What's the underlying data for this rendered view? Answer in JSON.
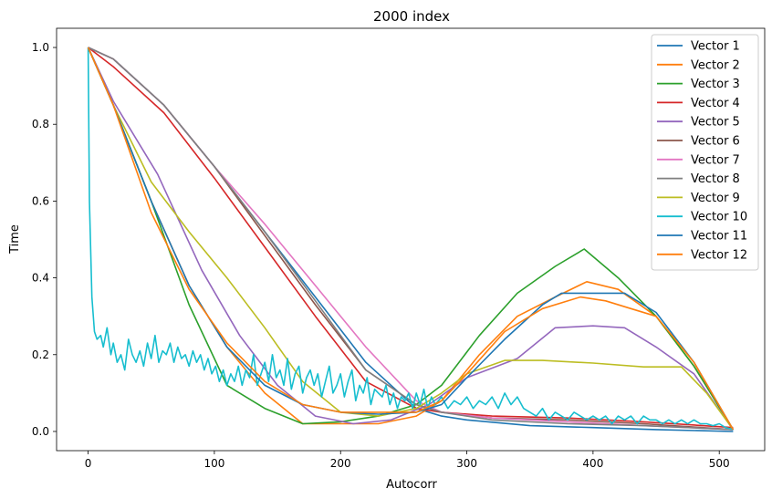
{
  "chart_data": {
    "type": "line",
    "title": "2000 index",
    "xlabel": "Autocorr",
    "ylabel": "Time",
    "xlim": [
      -25,
      536
    ],
    "ylim": [
      -0.05,
      1.05
    ],
    "xticks": [
      0,
      100,
      200,
      300,
      400,
      500
    ],
    "yticks": [
      0.0,
      0.2,
      0.4,
      0.6,
      0.8,
      1.0
    ],
    "xtick_labels": [
      "0",
      "100",
      "200",
      "300",
      "400",
      "500"
    ],
    "ytick_labels": [
      "0.0",
      "0.2",
      "0.4",
      "0.6",
      "0.8",
      "1.0"
    ],
    "grid": false,
    "legend_position": "top-right",
    "series": [
      {
        "name": "Vector 1",
        "color": "#1f77b4",
        "x": [
          0,
          20,
          60,
          100,
          140,
          180,
          220,
          260,
          280,
          300,
          350,
          400,
          450,
          511
        ],
        "y": [
          1.0,
          0.97,
          0.85,
          0.69,
          0.52,
          0.35,
          0.18,
          0.06,
          0.04,
          0.03,
          0.015,
          0.01,
          0.005,
          0.0
        ]
      },
      {
        "name": "Vector 2",
        "color": "#ff7f0e",
        "x": [
          0,
          20,
          50,
          80,
          110,
          140,
          170,
          200,
          230,
          260,
          280,
          310,
          340,
          370,
          395,
          420,
          450,
          480,
          511
        ],
        "y": [
          1.0,
          0.85,
          0.6,
          0.38,
          0.22,
          0.1,
          0.02,
          0.02,
          0.02,
          0.04,
          0.08,
          0.2,
          0.3,
          0.35,
          0.39,
          0.37,
          0.3,
          0.17,
          0.005
        ]
      },
      {
        "name": "Vector 3",
        "color": "#2ca02c",
        "x": [
          0,
          20,
          50,
          80,
          110,
          140,
          170,
          200,
          230,
          260,
          280,
          310,
          340,
          370,
          393,
          420,
          450,
          480,
          511
        ],
        "y": [
          1.0,
          0.85,
          0.6,
          0.33,
          0.12,
          0.06,
          0.02,
          0.025,
          0.04,
          0.07,
          0.12,
          0.25,
          0.36,
          0.43,
          0.475,
          0.4,
          0.3,
          0.17,
          0.005
        ]
      },
      {
        "name": "Vector 4",
        "color": "#d62728",
        "x": [
          0,
          20,
          60,
          100,
          140,
          180,
          220,
          260,
          280,
          320,
          380,
          440,
          511
        ],
        "y": [
          1.0,
          0.95,
          0.83,
          0.66,
          0.48,
          0.3,
          0.13,
          0.06,
          0.05,
          0.04,
          0.035,
          0.025,
          0.01
        ]
      },
      {
        "name": "Vector 5",
        "color": "#9467bd",
        "x": [
          0,
          20,
          55,
          90,
          120,
          150,
          180,
          210,
          240,
          270,
          300,
          340,
          370,
          400,
          425,
          450,
          480,
          511
        ],
        "y": [
          1.0,
          0.86,
          0.67,
          0.42,
          0.25,
          0.12,
          0.04,
          0.02,
          0.03,
          0.07,
          0.14,
          0.19,
          0.27,
          0.275,
          0.27,
          0.22,
          0.15,
          0.005
        ]
      },
      {
        "name": "Vector 6",
        "color": "#8c564b",
        "x": [
          0,
          20,
          60,
          100,
          140,
          180,
          220,
          260,
          280,
          320,
          380,
          440,
          511
        ],
        "y": [
          1.0,
          0.97,
          0.85,
          0.69,
          0.51,
          0.33,
          0.16,
          0.07,
          0.05,
          0.035,
          0.03,
          0.02,
          0.005
        ]
      },
      {
        "name": "Vector 7",
        "color": "#e377c2",
        "x": [
          0,
          20,
          60,
          100,
          140,
          180,
          220,
          260,
          280,
          320,
          380,
          440,
          511
        ],
        "y": [
          1.0,
          0.97,
          0.85,
          0.69,
          0.54,
          0.38,
          0.22,
          0.08,
          0.05,
          0.035,
          0.025,
          0.015,
          0.005
        ]
      },
      {
        "name": "Vector 8",
        "color": "#7f7f7f",
        "x": [
          0,
          20,
          60,
          100,
          140,
          180,
          220,
          260,
          280,
          320,
          380,
          440,
          511
        ],
        "y": [
          1.0,
          0.97,
          0.85,
          0.69,
          0.52,
          0.34,
          0.16,
          0.07,
          0.05,
          0.03,
          0.02,
          0.015,
          0.005
        ]
      },
      {
        "name": "Vector 9",
        "color": "#bcbd22",
        "x": [
          0,
          20,
          50,
          80,
          110,
          140,
          170,
          200,
          230,
          260,
          280,
          300,
          330,
          360,
          400,
          440,
          470,
          490,
          511
        ],
        "y": [
          1.0,
          0.85,
          0.65,
          0.52,
          0.4,
          0.27,
          0.13,
          0.05,
          0.04,
          0.06,
          0.1,
          0.15,
          0.185,
          0.185,
          0.178,
          0.168,
          0.168,
          0.1,
          0.005
        ]
      },
      {
        "name": "Vector 10",
        "color": "#17becf",
        "x": [
          0,
          1,
          3,
          5,
          7,
          10,
          12,
          15,
          18,
          20,
          23,
          26,
          29,
          32,
          35,
          38,
          41,
          44,
          47,
          50,
          53,
          56,
          59,
          62,
          65,
          68,
          71,
          74,
          77,
          80,
          83,
          86,
          89,
          92,
          95,
          98,
          101,
          104,
          107,
          110,
          113,
          116,
          119,
          122,
          125,
          128,
          131,
          134,
          137,
          140,
          143,
          146,
          149,
          152,
          155,
          158,
          161,
          164,
          167,
          170,
          173,
          176,
          179,
          182,
          185,
          188,
          191,
          194,
          197,
          200,
          203,
          206,
          209,
          212,
          215,
          218,
          221,
          224,
          227,
          230,
          233,
          236,
          239,
          242,
          245,
          248,
          251,
          254,
          257,
          260,
          263,
          266,
          269,
          272,
          275,
          280,
          285,
          290,
          295,
          300,
          305,
          310,
          315,
          320,
          325,
          330,
          335,
          340,
          345,
          350,
          355,
          360,
          365,
          370,
          375,
          380,
          385,
          390,
          395,
          400,
          405,
          410,
          415,
          420,
          425,
          430,
          435,
          440,
          445,
          450,
          455,
          460,
          465,
          470,
          475,
          480,
          485,
          490,
          495,
          500,
          505,
          511
        ],
        "y": [
          1.0,
          0.6,
          0.35,
          0.26,
          0.24,
          0.25,
          0.22,
          0.27,
          0.2,
          0.23,
          0.18,
          0.2,
          0.16,
          0.24,
          0.2,
          0.18,
          0.21,
          0.17,
          0.23,
          0.19,
          0.25,
          0.18,
          0.21,
          0.2,
          0.23,
          0.18,
          0.22,
          0.19,
          0.2,
          0.17,
          0.21,
          0.18,
          0.2,
          0.16,
          0.19,
          0.15,
          0.17,
          0.13,
          0.16,
          0.12,
          0.15,
          0.13,
          0.17,
          0.12,
          0.16,
          0.14,
          0.2,
          0.12,
          0.15,
          0.18,
          0.13,
          0.2,
          0.14,
          0.16,
          0.12,
          0.19,
          0.11,
          0.15,
          0.17,
          0.1,
          0.14,
          0.16,
          0.12,
          0.15,
          0.09,
          0.13,
          0.17,
          0.1,
          0.12,
          0.15,
          0.09,
          0.13,
          0.16,
          0.08,
          0.12,
          0.1,
          0.14,
          0.07,
          0.11,
          0.1,
          0.09,
          0.12,
          0.07,
          0.1,
          0.06,
          0.09,
          0.08,
          0.1,
          0.06,
          0.1,
          0.07,
          0.11,
          0.06,
          0.09,
          0.07,
          0.09,
          0.06,
          0.08,
          0.07,
          0.09,
          0.06,
          0.08,
          0.07,
          0.09,
          0.06,
          0.1,
          0.07,
          0.09,
          0.06,
          0.05,
          0.04,
          0.06,
          0.03,
          0.05,
          0.04,
          0.03,
          0.05,
          0.04,
          0.03,
          0.04,
          0.03,
          0.04,
          0.02,
          0.04,
          0.03,
          0.04,
          0.02,
          0.04,
          0.03,
          0.03,
          0.02,
          0.03,
          0.02,
          0.03,
          0.02,
          0.03,
          0.02,
          0.02,
          0.015,
          0.02,
          0.01,
          0.005
        ]
      },
      {
        "name": "Vector 11",
        "color": "#1f77b4",
        "x": [
          0,
          20,
          50,
          80,
          110,
          140,
          170,
          200,
          230,
          260,
          280,
          300,
          330,
          360,
          375,
          400,
          425,
          450,
          480,
          511
        ],
        "y": [
          1.0,
          0.85,
          0.6,
          0.38,
          0.22,
          0.12,
          0.07,
          0.05,
          0.045,
          0.05,
          0.07,
          0.14,
          0.24,
          0.33,
          0.36,
          0.36,
          0.36,
          0.31,
          0.18,
          0.005
        ]
      },
      {
        "name": "Vector 12",
        "color": "#ff7f0e",
        "x": [
          0,
          20,
          50,
          80,
          110,
          140,
          170,
          200,
          230,
          260,
          280,
          300,
          330,
          360,
          390,
          410,
          430,
          450,
          480,
          511
        ],
        "y": [
          1.0,
          0.85,
          0.57,
          0.37,
          0.23,
          0.13,
          0.07,
          0.05,
          0.05,
          0.05,
          0.08,
          0.15,
          0.26,
          0.32,
          0.35,
          0.34,
          0.32,
          0.3,
          0.18,
          0.005
        ]
      }
    ]
  }
}
